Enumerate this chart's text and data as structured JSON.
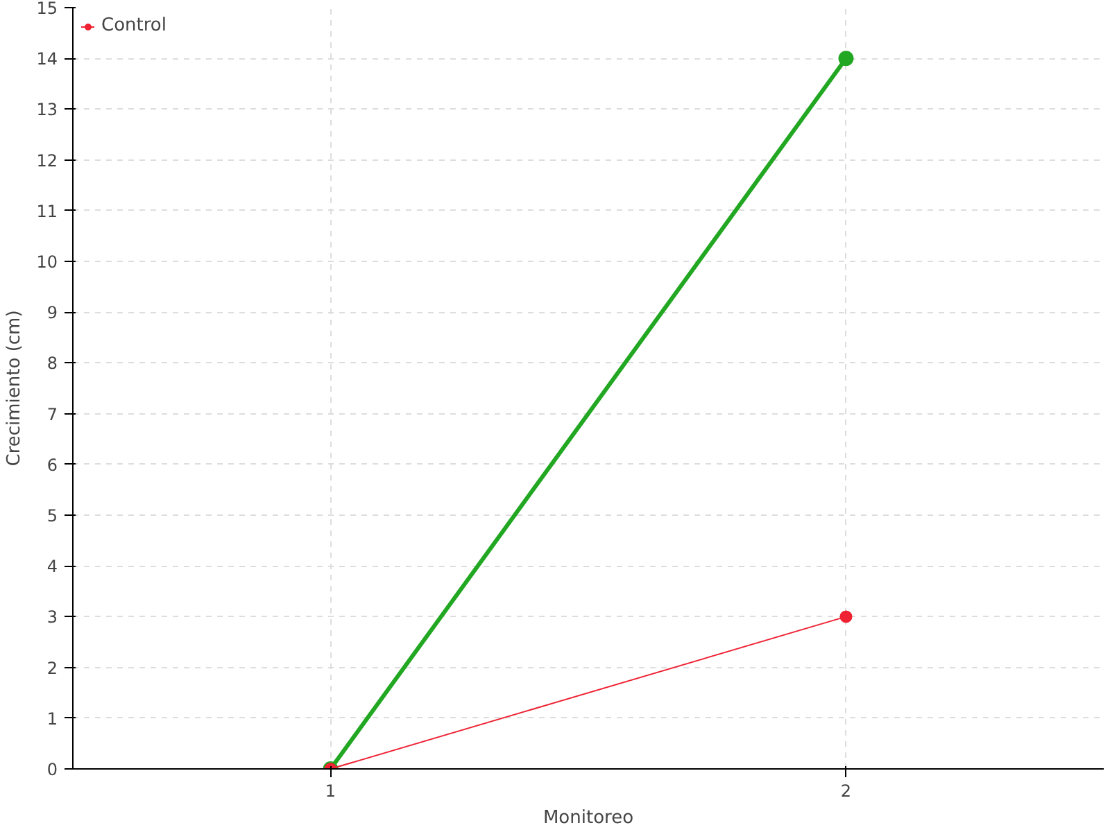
{
  "chart_data": {
    "type": "line",
    "xlabel": "Monitoreo",
    "ylabel": "Crecimiento (cm)",
    "x": [
      1,
      2
    ],
    "xlim": [
      0.5,
      2.5
    ],
    "xticks": [
      1,
      2
    ],
    "ylim": [
      0,
      15
    ],
    "yticks": [
      0,
      1,
      2,
      3,
      4,
      5,
      6,
      7,
      8,
      9,
      10,
      11,
      12,
      13,
      14,
      15
    ],
    "series": [
      {
        "color": "#22a722",
        "values": [
          0,
          14
        ]
      },
      {
        "name": "Control",
        "color": "#ee2233",
        "values": [
          0,
          3
        ]
      }
    ],
    "grid": true,
    "legend": "top left",
    "marker": "circle",
    "line_style": "solid"
  }
}
